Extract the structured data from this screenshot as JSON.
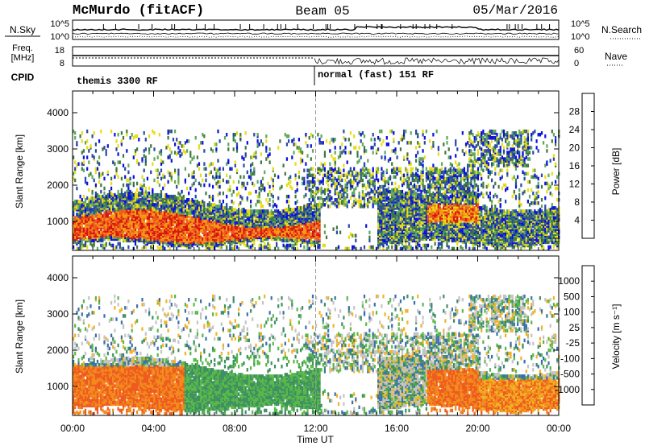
{
  "header": {
    "radar": "McMurdo (fitACF)",
    "beam": "Beam 05",
    "date": "05/Mar/2016"
  },
  "top_panel": {
    "left_labels": [
      "N.Sky",
      "Freq.",
      "[MHz]",
      "CPID"
    ],
    "right_labels": [
      "N.Search",
      "Nave"
    ],
    "noise_ticks": [
      "10^5",
      "10^0"
    ],
    "freq_ticks": [
      "18",
      "8"
    ],
    "nave_ticks": [
      "60",
      "0"
    ],
    "cpid_labels": [
      "themis 3300 RF",
      "normal (fast) 151 RF"
    ]
  },
  "chart_data": [
    {
      "type": "heatmap",
      "title": "",
      "xlabel": "Time UT",
      "ylabel": "Slant Range [km]",
      "x_ticks": [
        "00:00",
        "04:00",
        "08:00",
        "12:00",
        "16:00",
        "20:00",
        "00:00"
      ],
      "y_ticks": [
        "1000",
        "2000",
        "3000",
        "4000"
      ],
      "ylim": [
        200,
        4600
      ],
      "colorbar": {
        "label": "Power [dB]",
        "ticks": [
          "4",
          "8",
          "12",
          "16",
          "20",
          "24",
          "28"
        ],
        "colors": [
          "#0b10e0",
          "#2849a8",
          "#3d7a3c",
          "#5fa95b",
          "#e9dc13",
          "#f39a17",
          "#ef5a1c",
          "#d8150d"
        ]
      }
    },
    {
      "type": "heatmap",
      "title": "",
      "xlabel": "Time UT",
      "ylabel": "Slant Range [km]",
      "x_ticks": [
        "00:00",
        "04:00",
        "08:00",
        "12:00",
        "16:00",
        "20:00",
        "00:00"
      ],
      "y_ticks": [
        "1000",
        "2000",
        "3000",
        "4000"
      ],
      "ylim": [
        200,
        4600
      ],
      "colorbar": {
        "label": "Velocity [m s⁻¹]",
        "ticks": [
          "1000",
          "500",
          "100",
          "25",
          "-25",
          "-100",
          "-500",
          "-1000"
        ],
        "colors": [
          "#1f4fb4",
          "#3a6fae",
          "#3e8f62",
          "#58b848",
          "#c4c4c4",
          "#f0b324",
          "#f28a1c",
          "#ee5a1f",
          "#e21515"
        ]
      }
    }
  ],
  "footer": {
    "xlabel": "Time UT"
  }
}
